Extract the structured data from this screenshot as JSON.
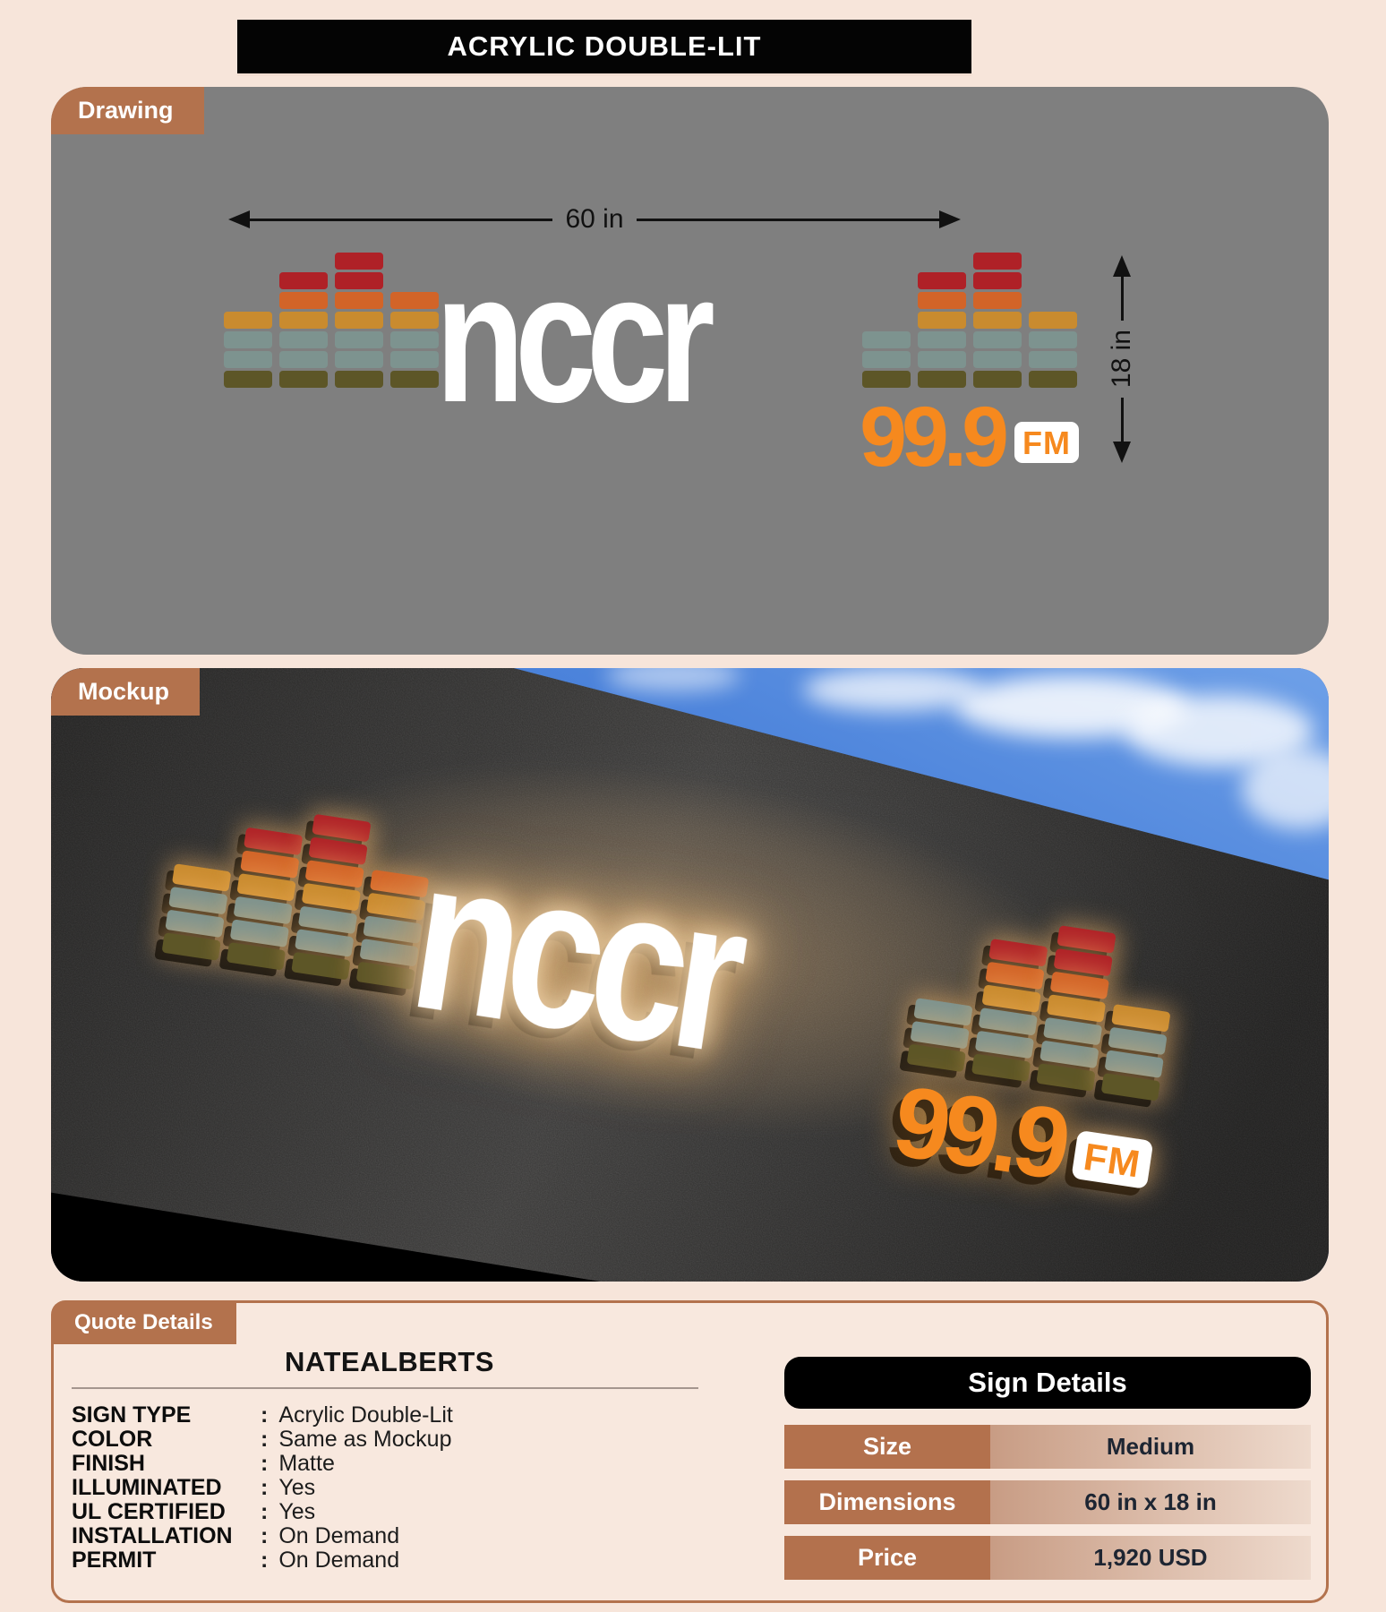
{
  "page": {
    "title": "ACRYLIC DOUBLE-LIT",
    "background": "#f7e5da",
    "accent_copper": "#b3724d"
  },
  "drawing": {
    "tab_label": "Drawing",
    "width_label": "60 in",
    "height_label": "18 in",
    "canvas_color": "#7f7f7f"
  },
  "mockup": {
    "tab_label": "Mockup",
    "wall_color": "#31302f",
    "sky_color": "#3a74d4",
    "glow_color": "#ffc67d"
  },
  "logo": {
    "wordmark": "nccr",
    "frequency": "99.9",
    "band": "FM",
    "palette": {
      "red": "#af2127",
      "orange": "#d26428",
      "amber": "#c98b2f",
      "teal": "#7d938f",
      "olive": "#5d5627",
      "wordmark_color": "#ffffff",
      "frequency_color": "#f6891e"
    },
    "eq_left": [
      [
        "amber",
        "teal",
        "teal",
        "olive"
      ],
      [
        "red",
        "orange",
        "amber",
        "teal",
        "teal",
        "olive"
      ],
      [
        "red",
        "red",
        "orange",
        "amber",
        "teal",
        "teal",
        "olive"
      ],
      [
        "orange",
        "amber",
        "teal",
        "teal",
        "olive"
      ]
    ],
    "eq_right": [
      [
        "teal",
        "teal",
        "olive"
      ],
      [
        "red",
        "orange",
        "amber",
        "teal",
        "teal",
        "olive"
      ],
      [
        "red",
        "red",
        "orange",
        "amber",
        "teal",
        "teal",
        "olive"
      ],
      [
        "amber",
        "teal",
        "teal",
        "olive"
      ]
    ]
  },
  "quote": {
    "tab_label": "Quote Details",
    "company": "NATEALBERTS",
    "colon": ":",
    "fields": [
      {
        "label": "SIGN TYPE",
        "value": "Acrylic Double-Lit"
      },
      {
        "label": "COLOR",
        "value": "Same as Mockup"
      },
      {
        "label": "FINISH",
        "value": "Matte"
      },
      {
        "label": "ILLUMINATED",
        "value": "Yes"
      },
      {
        "label": "UL CERTIFIED",
        "value": "Yes"
      },
      {
        "label": "INSTALLATION",
        "value": "On Demand"
      },
      {
        "label": "PERMIT",
        "value": "On Demand"
      }
    ]
  },
  "sign_details": {
    "title": "Sign Details",
    "rows": [
      {
        "label": "Size",
        "value": "Medium"
      },
      {
        "label": "Dimensions",
        "value": "60 in x 18 in"
      },
      {
        "label": "Price",
        "value": "1,920 USD"
      }
    ]
  }
}
